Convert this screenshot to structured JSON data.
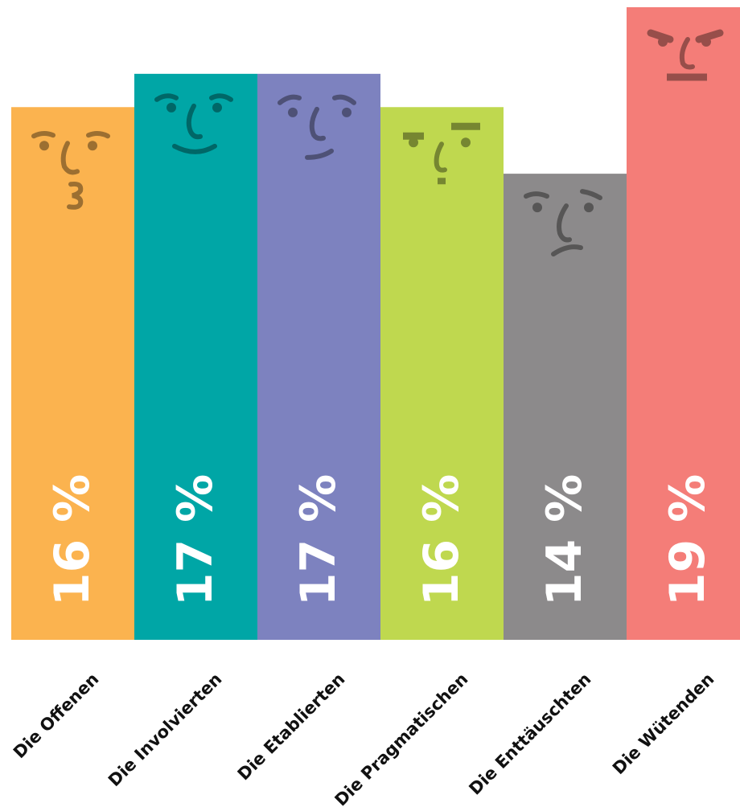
{
  "chart_data": {
    "type": "bar",
    "categories": [
      "Die Offenen",
      "Die Involvierten",
      "Die Etablierten",
      "Die Pragmatischen",
      "Die Enttäuschten",
      "Die Wütenden"
    ],
    "values": [
      16,
      17,
      17,
      16,
      14,
      19
    ],
    "value_labels": [
      "16 %",
      "17 %",
      "17 %",
      "16 %",
      "14 %",
      "19 %"
    ],
    "colors": [
      "#fbb34f",
      "#00a6a6",
      "#7d82bf",
      "#bfd84f",
      "#8c8a8b",
      "#f47d78"
    ],
    "faces": [
      "kissing-face-icon",
      "smiling-face-icon",
      "content-face-icon",
      "skeptical-face-icon",
      "sad-face-icon",
      "angry-face-icon"
    ],
    "ylim": [
      0,
      19
    ],
    "grid": false,
    "title": "",
    "xlabel": "",
    "ylabel": ""
  }
}
